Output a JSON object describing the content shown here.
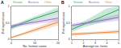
{
  "chart_data": [
    {
      "type": "line",
      "title": "A",
      "x_label": "No. human cases",
      "y_label": "Pathogens/case",
      "x": [
        0,
        5,
        10,
        15,
        20
      ],
      "xlim": [
        0,
        20
      ],
      "xticks": [
        0,
        10,
        20
      ],
      "ylim": [
        0,
        1
      ],
      "yticks": [
        0,
        0.5,
        1
      ],
      "grid": false,
      "legend": "top-left",
      "series": [
        {
          "name": "Viruses",
          "color": "#2ca25f",
          "values": [
            0.35,
            0.5,
            0.63,
            0.75,
            0.86
          ],
          "lower": [
            0.28,
            0.44,
            0.56,
            0.66,
            0.74
          ],
          "upper": [
            0.42,
            0.56,
            0.7,
            0.84,
            0.97
          ]
        },
        {
          "name": "Bacteria",
          "color": "#8e6fc9",
          "values": [
            0.4,
            0.46,
            0.52,
            0.58,
            0.64
          ],
          "lower": [
            0.35,
            0.41,
            0.46,
            0.5,
            0.55
          ],
          "upper": [
            0.45,
            0.51,
            0.58,
            0.66,
            0.73
          ]
        },
        {
          "name": "Other",
          "color": "#e6863b",
          "values": [
            0.05,
            0.16,
            0.28,
            0.4,
            0.52
          ],
          "lower": [
            0.02,
            0.12,
            0.22,
            0.32,
            0.42
          ],
          "upper": [
            0.08,
            0.2,
            0.34,
            0.48,
            0.62
          ]
        }
      ]
    },
    {
      "type": "line",
      "title": "B",
      "x_label": "Average no. hosts",
      "y_label": "Pathogens/case",
      "x": [
        1,
        2,
        3,
        4,
        5
      ],
      "xlim": [
        1,
        5
      ],
      "xticks": [
        1,
        2,
        3,
        4,
        5
      ],
      "ylim": [
        0,
        1
      ],
      "yticks": [
        0,
        0.5,
        1
      ],
      "grid": false,
      "legend": "top-left",
      "series": [
        {
          "name": "Viruses",
          "color": "#2ca25f",
          "values": [
            0.3,
            0.45,
            0.6,
            0.75,
            0.9
          ],
          "lower": [
            0.22,
            0.36,
            0.46,
            0.56,
            0.66
          ],
          "upper": [
            0.38,
            0.54,
            0.74,
            0.94,
            1
          ]
        },
        {
          "name": "Bacteria",
          "color": "#8e6fc9",
          "values": [
            0.42,
            0.48,
            0.54,
            0.6,
            0.66
          ],
          "lower": [
            0.36,
            0.43,
            0.48,
            0.52,
            0.56
          ],
          "upper": [
            0.48,
            0.53,
            0.6,
            0.68,
            0.76
          ]
        },
        {
          "name": "Other",
          "color": "#e6863b",
          "values": [
            0.15,
            0.17,
            0.19,
            0.21,
            0.23
          ],
          "lower": [
            0.1,
            0.13,
            0.15,
            0.16,
            0.17
          ],
          "upper": [
            0.2,
            0.21,
            0.23,
            0.26,
            0.29
          ]
        }
      ]
    }
  ]
}
